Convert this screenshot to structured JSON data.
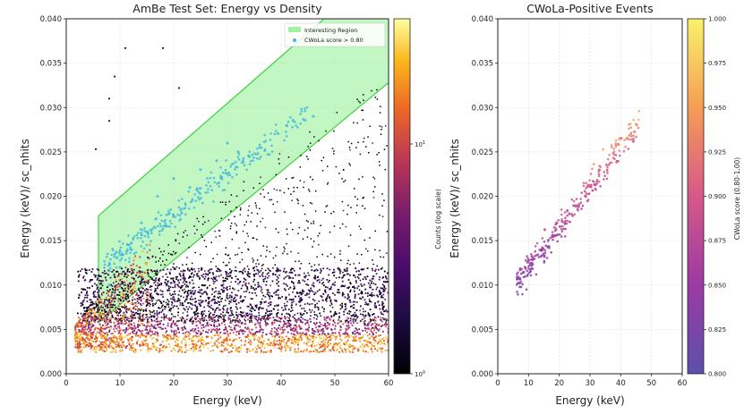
{
  "chart_data": [
    {
      "type": "heatmap",
      "title": "AmBe Test Set: Energy vs Density",
      "xlabel": "Energy (keV)",
      "ylabel": "Energy (keV)/ sc_nhits",
      "xlim": [
        0,
        60
      ],
      "ylim": [
        0,
        0.04
      ],
      "xticks": [
        "0",
        "10",
        "20",
        "30",
        "40",
        "50",
        "60"
      ],
      "yticks": [
        "0.000",
        "0.005",
        "0.010",
        "0.015",
        "0.020",
        "0.025",
        "0.030",
        "0.035",
        "0.040"
      ],
      "grid": true,
      "log_scale_color": true,
      "colormap": "inferno",
      "colorbar_label": "Counts (log scale)",
      "colorbar_ticks": [
        "10^0",
        "10^1"
      ],
      "legend_position": "top-right",
      "legend": [
        {
          "label": "Interesting Region",
          "color": "#90ee90"
        },
        {
          "label": "CWoLa score > 0.80",
          "color": "#3fb6e0"
        }
      ],
      "interesting_region": {
        "lower_line": [
          [
            6,
            0.0058
          ],
          [
            60,
            0.0328
          ]
        ],
        "upper_line": [
          [
            6,
            0.0178
          ],
          [
            48,
            0.04
          ]
        ],
        "x_range": [
          6,
          60
        ]
      },
      "band_density": [
        {
          "y_range": [
            0.0025,
            0.0045
          ],
          "x_range": [
            2,
            60
          ],
          "intensity": "high"
        },
        {
          "y_range": [
            0.0045,
            0.0065
          ],
          "x_range": [
            2,
            60
          ],
          "intensity": "medium"
        },
        {
          "y_range": [
            0.0065,
            0.012
          ],
          "x_range": [
            2,
            60
          ],
          "intensity": "low"
        }
      ],
      "isolated_points": [
        {
          "x": 11.0,
          "y": 0.0367
        },
        {
          "x": 18.0,
          "y": 0.0367
        },
        {
          "x": 9.0,
          "y": 0.0335
        },
        {
          "x": 8.0,
          "y": 0.031
        },
        {
          "x": 21.0,
          "y": 0.0322
        },
        {
          "x": 5.5,
          "y": 0.0253
        },
        {
          "x": 8.0,
          "y": 0.0285
        }
      ],
      "cwola_points_sample": [
        {
          "x": 14,
          "y": 0.017
        },
        {
          "x": 17,
          "y": 0.02
        },
        {
          "x": 20,
          "y": 0.022
        },
        {
          "x": 23,
          "y": 0.021
        },
        {
          "x": 25,
          "y": 0.023
        },
        {
          "x": 28,
          "y": 0.024
        },
        {
          "x": 30,
          "y": 0.026
        },
        {
          "x": 32,
          "y": 0.025
        },
        {
          "x": 36,
          "y": 0.0255
        },
        {
          "x": 41,
          "y": 0.028
        },
        {
          "x": 46,
          "y": 0.029
        },
        {
          "x": 12,
          "y": 0.014
        },
        {
          "x": 10,
          "y": 0.012
        },
        {
          "x": 8,
          "y": 0.01
        },
        {
          "x": 15,
          "y": 0.016
        },
        {
          "x": 19,
          "y": 0.018
        }
      ]
    },
    {
      "type": "scatter",
      "title": "CWoLa-Positive Events",
      "xlabel": "Energy (keV)",
      "ylabel": "Energy (keV)/ sc_nhits",
      "xlim": [
        0,
        60
      ],
      "ylim": [
        0,
        0.04
      ],
      "xticks": [
        "0",
        "10",
        "20",
        "30",
        "40",
        "50",
        "60"
      ],
      "yticks": [
        "0.000",
        "0.005",
        "0.010",
        "0.015",
        "0.020",
        "0.025",
        "0.030",
        "0.035",
        "0.040"
      ],
      "grid": true,
      "colormap": "plasma",
      "colorbar_label": "CWoLa score (0.80-1.00)",
      "colorbar_range": [
        0.8,
        1.0
      ],
      "colorbar_ticks": [
        "0.800",
        "0.825",
        "0.850",
        "0.875",
        "0.900",
        "0.925",
        "0.950",
        "0.975",
        "1.000"
      ],
      "point_cloud": {
        "x_range": [
          6,
          46
        ],
        "y_trend_start": [
          7,
          0.0105
        ],
        "y_trend_end": [
          45,
          0.028
        ],
        "spread": 0.0028,
        "score_trend": "increases with x and y"
      }
    }
  ]
}
